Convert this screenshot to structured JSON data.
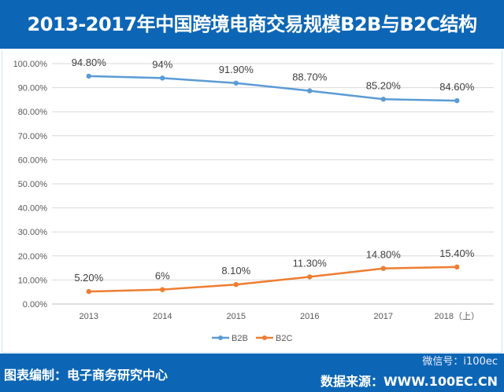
{
  "header": {
    "title": "2013-2017年中国跨境电商交易规模B2B与B2C结构"
  },
  "footer": {
    "compiler": "图表编制：电子商务研究中心",
    "source": "数据来源：WWW.100EC.CN",
    "watermark": "微信号：i100ec"
  },
  "chart_data": {
    "type": "line",
    "title": "2013-2017年中国跨境电商交易规模B2B与B2C结构",
    "categories": [
      "2013",
      "2014",
      "2015",
      "2016",
      "2017",
      "2018（上）"
    ],
    "series": [
      {
        "name": "B2B",
        "color": "#5b9bd5",
        "values": [
          94.8,
          94,
          91.9,
          88.7,
          85.2,
          84.6
        ],
        "labels": [
          "94.80%",
          "94%",
          "91.90%",
          "88.70%",
          "85.20%",
          "84.60%"
        ]
      },
      {
        "name": "B2C",
        "color": "#ed7d31",
        "values": [
          5.2,
          6,
          8.1,
          11.3,
          14.8,
          15.4
        ],
        "labels": [
          "5.20%",
          "6%",
          "8.10%",
          "11.30%",
          "14.80%",
          "15.40%"
        ]
      }
    ],
    "yticks": [
      "0.00%",
      "10.00%",
      "20.00%",
      "30.00%",
      "40.00%",
      "50.00%",
      "60.00%",
      "70.00%",
      "80.00%",
      "90.00%",
      "100.00%"
    ],
    "ylim": [
      0,
      100
    ],
    "xlabel": "",
    "ylabel": "",
    "grid": true,
    "legend": "bottom-center"
  }
}
